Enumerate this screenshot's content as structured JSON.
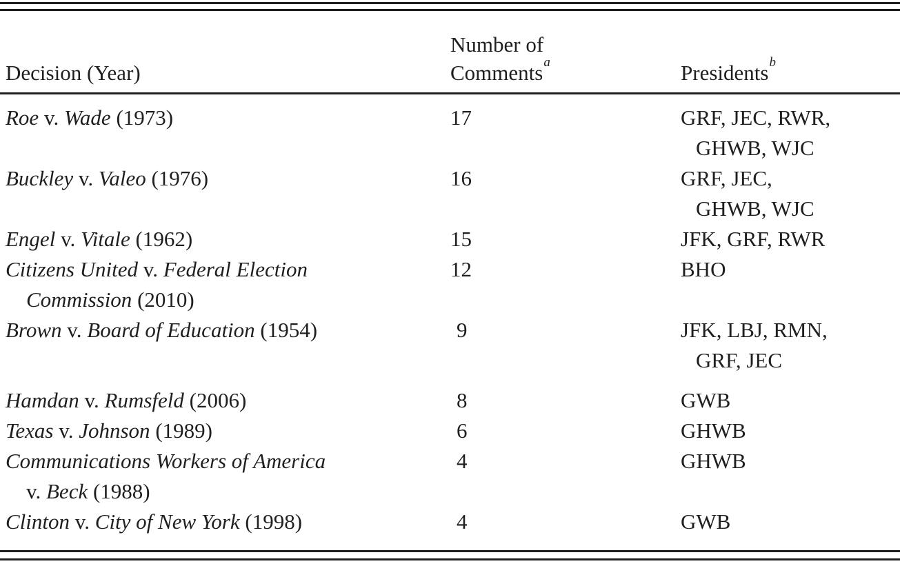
{
  "colors": {
    "background": "#ffffff",
    "text": "#1f1f1f",
    "rule": "#1e1e1e"
  },
  "table": {
    "header": {
      "decision": "Decision (Year)",
      "comments_line1": "Number of",
      "comments_line2": "Comments",
      "comments_footnote": "a",
      "presidents": "Presidents",
      "presidents_footnote": "b"
    },
    "rows": [
      {
        "decision_lines": [
          [
            "Roe ",
            "v. ",
            "Wade ",
            "(1973)"
          ]
        ],
        "comments": "17",
        "presidents_lines": [
          "GRF, JEC, RWR,",
          "GHWB, WJC"
        ]
      },
      {
        "decision_lines": [
          [
            "Buckley ",
            "v. ",
            "Valeo ",
            "(1976)"
          ]
        ],
        "comments": "16",
        "presidents_lines": [
          "GRF, JEC,",
          "GHWB, WJC"
        ]
      },
      {
        "decision_lines": [
          [
            "Engel ",
            "v. ",
            "Vitale ",
            "(1962)"
          ]
        ],
        "comments": "15",
        "presidents_lines": [
          "JFK, GRF, RWR"
        ]
      },
      {
        "decision_lines": [
          [
            "Citizens United ",
            "v. ",
            "Federal Election"
          ],
          [
            "Commission ",
            "(2010)"
          ]
        ],
        "comments": "12",
        "presidents_lines": [
          "BHO"
        ]
      },
      {
        "decision_lines": [
          [
            "Brown ",
            "v. ",
            "Board of Education ",
            "(1954)"
          ]
        ],
        "comments": "9",
        "presidents_lines": [
          "JFK, LBJ, RMN,",
          "GRF, JEC"
        ]
      },
      {
        "decision_lines": [
          [
            "Hamdan ",
            "v. ",
            "Rumsfeld ",
            "(2006)"
          ]
        ],
        "comments": "8",
        "presidents_lines": [
          "GWB"
        ]
      },
      {
        "decision_lines": [
          [
            "Texas ",
            "v. ",
            "Johnson ",
            "(1989)"
          ]
        ],
        "comments": "6",
        "presidents_lines": [
          "GHWB"
        ]
      },
      {
        "decision_lines": [
          [
            "Communications Workers of America"
          ],
          [
            "v. ",
            "Beck ",
            "(1988)"
          ]
        ],
        "comments": "4",
        "presidents_lines": [
          "GHWB"
        ]
      },
      {
        "decision_lines": [
          [
            "Clinton ",
            "v. ",
            "City of New York ",
            "(1998)"
          ]
        ],
        "comments": "4",
        "presidents_lines": [
          "GWB"
        ]
      }
    ]
  }
}
